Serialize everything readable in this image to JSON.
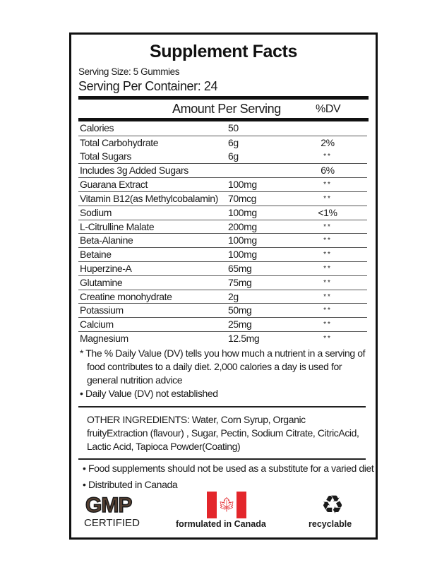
{
  "title": "Supplement Facts",
  "serving_size": "Serving Size: 5 Gummies",
  "serving_per_container": "Serving Per Container: 24",
  "header": {
    "amount": "Amount Per Serving",
    "dv": "%DV"
  },
  "rows": [
    {
      "name": "Calories",
      "amount": "50",
      "dv": ""
    },
    {
      "name": "Total Carbohydrate",
      "amount": "6g",
      "dv": "2%"
    },
    {
      "name": "Total Sugars",
      "amount": "6g",
      "dv": "**"
    },
    {
      "name": "Includes 3g Added Sugars",
      "amount": "",
      "dv": "6%"
    },
    {
      "name": "Guarana Extract",
      "amount": "100mg",
      "dv": "**"
    },
    {
      "name": "Vitamin B12(as Methylcobalamin)",
      "amount": "70mcg",
      "dv": "**"
    },
    {
      "name": "Sodium",
      "amount": "100mg",
      "dv": "<1%"
    },
    {
      "name": "L-Citrulline Malate",
      "amount": "200mg",
      "dv": "**"
    },
    {
      "name": "Beta-Alanine",
      "amount": "100mg",
      "dv": "**"
    },
    {
      "name": "Betaine",
      "amount": "100mg",
      "dv": "**"
    },
    {
      "name": "Huperzine-A",
      "amount": "65mg",
      "dv": "**"
    },
    {
      "name": "Glutamine",
      "amount": "75mg",
      "dv": "**"
    },
    {
      "name": "Creatine monohydrate",
      "amount": "2g",
      "dv": "**"
    },
    {
      "name": "Potassium",
      "amount": "50mg",
      "dv": "**"
    },
    {
      "name": "Calcium",
      "amount": "25mg",
      "dv": "**"
    },
    {
      "name": "Magnesium",
      "amount": "12.5mg",
      "dv": "**"
    }
  ],
  "footnote1": "* The % Daily Value (DV) tells you how much a nutrient in a serving of food contributes to a daily diet. 2,000 calories a day is used for general nutrition advice",
  "footnote2": "• Daily Value (DV) not established",
  "other_ingredients": "OTHER INGREDIENTS: Water, Corn Syrup, Organic fruityExtraction (flavour) , Sugar, Pectin, Sodium Citrate, CitricAcid, Lactic Acid, Tapioca Powder(Coating)",
  "bullet1": "• Food supplements should not be used as a substitute for a varied diet",
  "bullet2": "• Distributed in Canada",
  "logos": {
    "gmp": "GMP",
    "certified": "CERTIFIED",
    "canada": "formulated in Canada",
    "recyclable": "recyclable",
    "flag_red": "#e3262b",
    "gmp_brown": "#5a4334"
  }
}
